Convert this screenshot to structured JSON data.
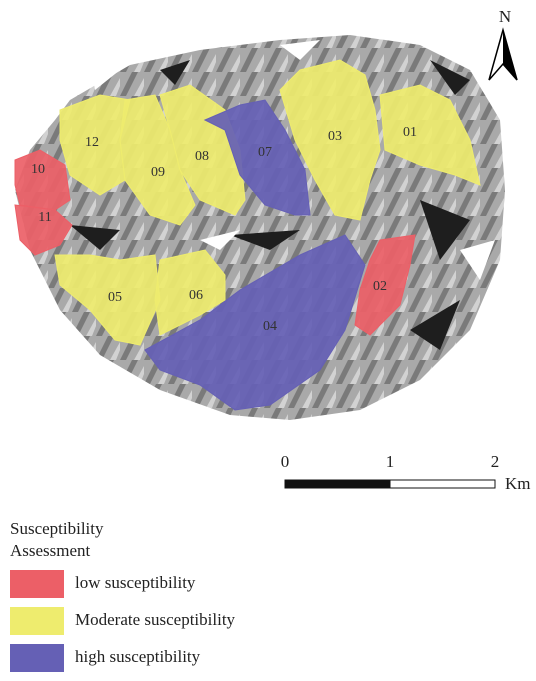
{
  "map": {
    "north": "N",
    "legend": {
      "title_lines": [
        "Susceptibility",
        "Assessment"
      ],
      "items": [
        {
          "label": "low susceptibility",
          "color": "#ec5f67",
          "zones": [
            "10",
            "11",
            "02"
          ]
        },
        {
          "label": "Moderate susceptibility",
          "color": "#eeec6e",
          "zones": [
            "01",
            "03",
            "05",
            "06",
            "08",
            "09",
            "12"
          ]
        },
        {
          "label": "high susceptibility",
          "color": "#6560b5",
          "zones": [
            "04",
            "07"
          ]
        }
      ]
    },
    "scale": {
      "ticks": [
        0,
        1,
        2
      ],
      "unit": "Km"
    }
  }
}
